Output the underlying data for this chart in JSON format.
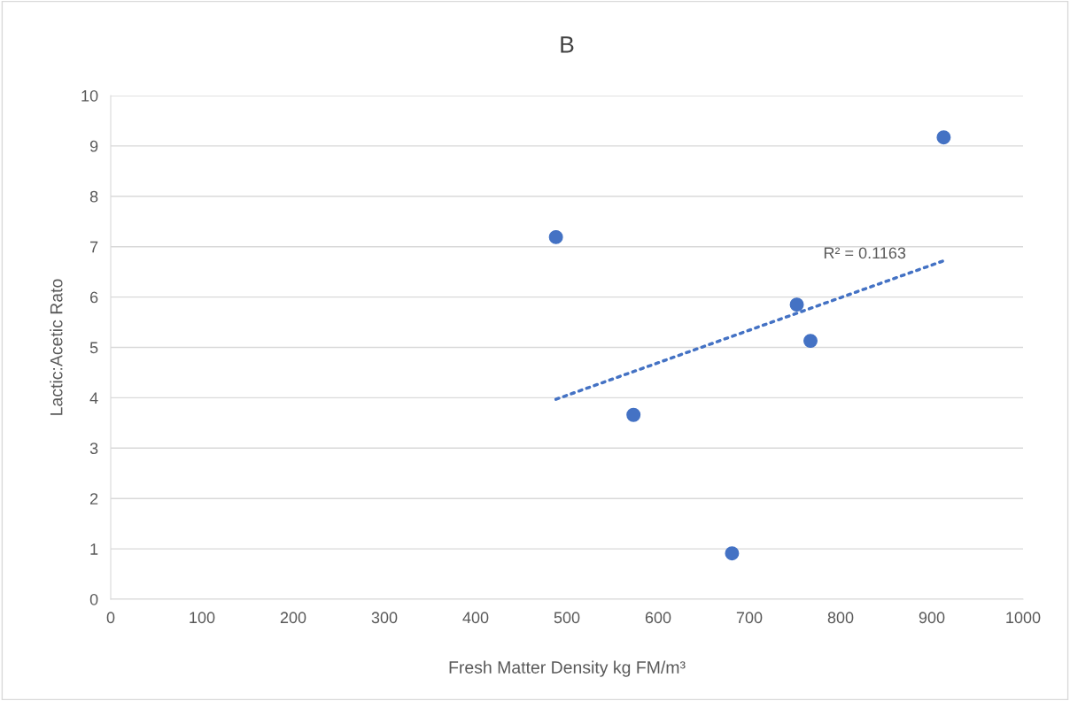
{
  "chart_data": {
    "type": "scatter",
    "title": "B",
    "xlabel": "Fresh Matter Density kg FM/m³",
    "ylabel": "Lactic:Acetic Rato",
    "xlim": [
      0,
      1000
    ],
    "xticks": [
      0,
      100,
      200,
      300,
      400,
      500,
      600,
      700,
      800,
      900,
      1000
    ],
    "ylim": [
      0,
      10
    ],
    "yticks": [
      0,
      1,
      2,
      3,
      4,
      5,
      6,
      7,
      8,
      9,
      10
    ],
    "grid": "y",
    "marker": "circle",
    "series": [
      {
        "color": "#4472c4",
        "x": [
          488,
          573,
          681,
          752,
          767,
          913
        ],
        "values": [
          7.19,
          3.66,
          0.91,
          5.85,
          5.13,
          9.17
        ]
      },
      {
        "type": "line",
        "color": "#4472c4",
        "line_style": "dotted",
        "marker": "none",
        "x": [
          488,
          913
        ],
        "values": [
          3.97,
          6.72
        ]
      }
    ],
    "annotations": [
      "R² = 0.1163"
    ]
  }
}
